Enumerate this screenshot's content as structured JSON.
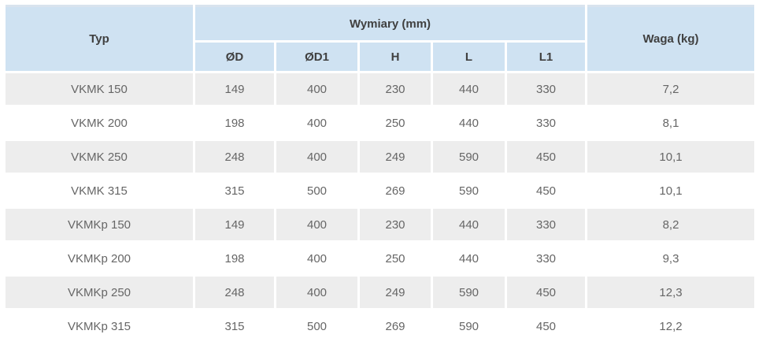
{
  "table": {
    "header": {
      "typ": "Typ",
      "dims_group": "Wymiary (mm)",
      "waga": "Waga (kg)",
      "dim_columns": [
        "ØD",
        "ØD1",
        "H",
        "L",
        "L1"
      ]
    },
    "rows": [
      {
        "typ": "VKMK 150",
        "dims": [
          "149",
          "400",
          "230",
          "440",
          "330"
        ],
        "waga": "7,2"
      },
      {
        "typ": "VKMK 200",
        "dims": [
          "198",
          "400",
          "250",
          "440",
          "330"
        ],
        "waga": "8,1"
      },
      {
        "typ": "VKMK 250",
        "dims": [
          "248",
          "400",
          "249",
          "590",
          "450"
        ],
        "waga": "10,1"
      },
      {
        "typ": "VKMK 315",
        "dims": [
          "315",
          "500",
          "269",
          "590",
          "450"
        ],
        "waga": "10,1"
      },
      {
        "typ": "VKMKp 150",
        "dims": [
          "149",
          "400",
          "230",
          "440",
          "330"
        ],
        "waga": "8,2"
      },
      {
        "typ": "VKMKp 200",
        "dims": [
          "198",
          "400",
          "250",
          "440",
          "330"
        ],
        "waga": "9,3"
      },
      {
        "typ": "VKMKp 250",
        "dims": [
          "248",
          "400",
          "249",
          "590",
          "450"
        ],
        "waga": "12,3"
      },
      {
        "typ": "VKMKp 315",
        "dims": [
          "315",
          "500",
          "269",
          "590",
          "450"
        ],
        "waga": "12,2"
      }
    ],
    "colors": {
      "header_bg": "#cfe2f2",
      "header_text": "#404040",
      "body_text": "#666666",
      "row_bg": "#ffffff",
      "row_alt_bg": "#ededed",
      "header_top_border": "#d9e3ee"
    }
  }
}
